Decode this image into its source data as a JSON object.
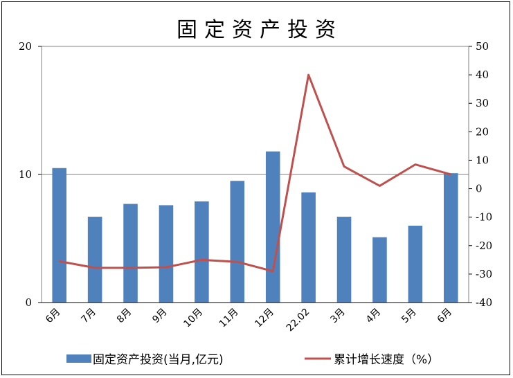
{
  "chart_data": {
    "type": "bar+line",
    "title": "固定资产投资",
    "categories": [
      "6月",
      "7月",
      "8月",
      "9月",
      "10月",
      "11月",
      "12月",
      "22.02",
      "3月",
      "4月",
      "5月",
      "6月"
    ],
    "series": [
      {
        "name": "固定资产投资(当月,亿元)",
        "type": "bar",
        "axis": "left",
        "color": "#4F81BD",
        "values": [
          10.5,
          6.7,
          7.7,
          7.6,
          7.9,
          9.5,
          11.8,
          8.6,
          6.7,
          5.1,
          6.0,
          10.1
        ]
      },
      {
        "name": "累计增长速度（%）",
        "type": "line",
        "axis": "right",
        "color": "#C0504D",
        "values": [
          -25.5,
          -27.8,
          -27.8,
          -27.6,
          -25,
          -25.7,
          -29,
          40,
          7.8,
          1,
          8.5,
          5
        ]
      }
    ],
    "left_axis": {
      "min": 0,
      "max": 20,
      "ticks": [
        0,
        10,
        20
      ]
    },
    "right_axis": {
      "min": -40,
      "max": 50,
      "ticks": [
        50,
        40,
        30,
        20,
        10,
        0,
        -10,
        -20,
        -30,
        -40
      ]
    },
    "grid": "horizontal at 10",
    "legend": "bottom"
  }
}
